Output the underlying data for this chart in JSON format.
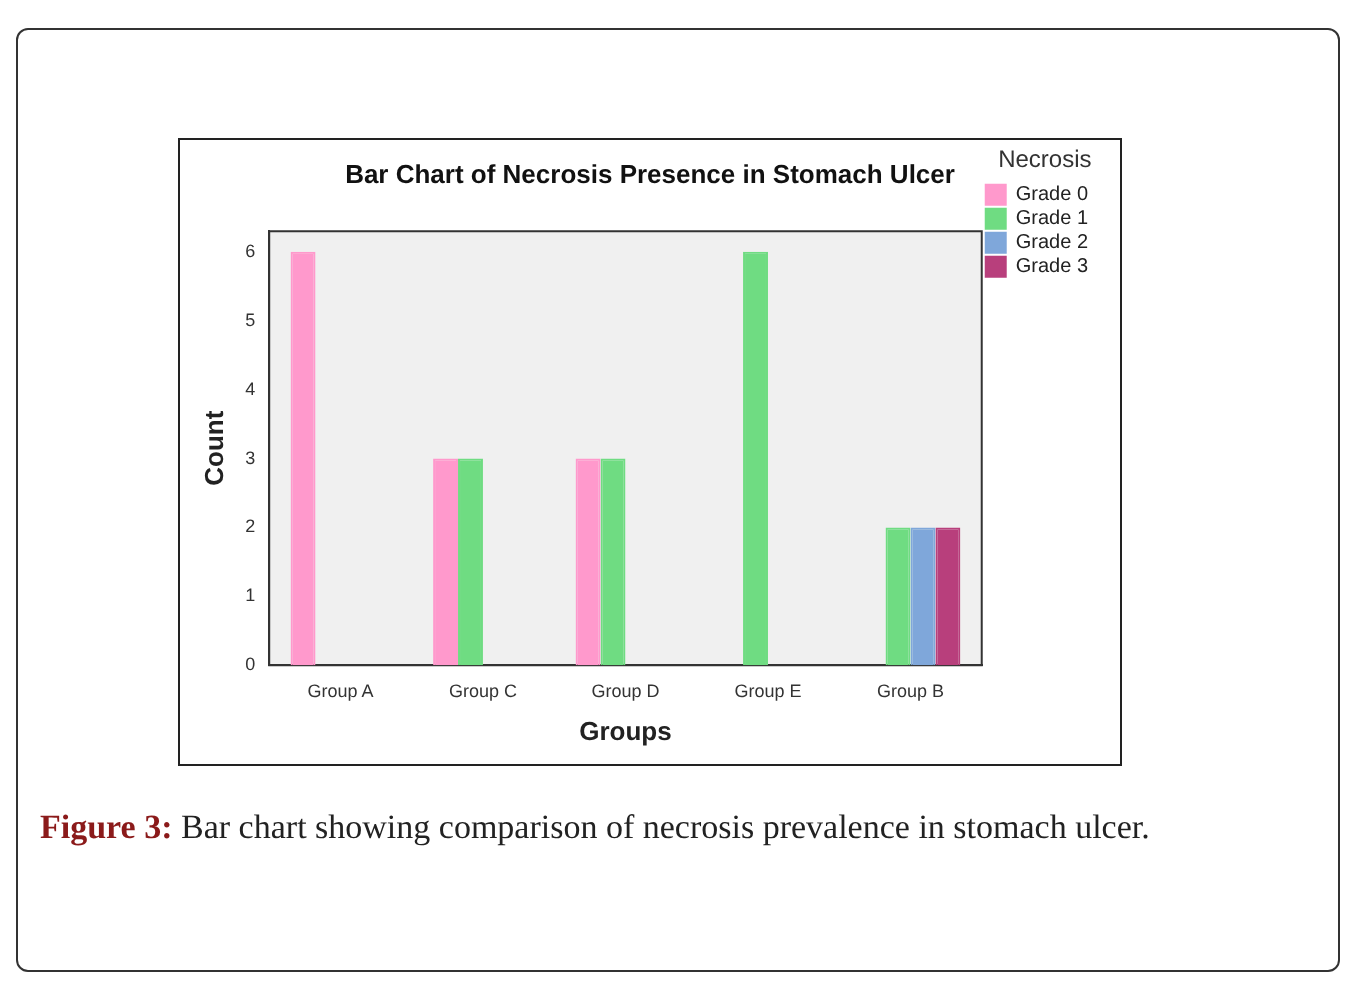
{
  "chart_data": {
    "type": "bar",
    "title": "Bar Chart of Necrosis Presence in Stomach Ulcer",
    "xlabel": "Groups",
    "ylabel": "Count",
    "legend_title": "Necrosis",
    "categories": [
      "Group A",
      "Group C",
      "Group D",
      "Group E",
      "Group B"
    ],
    "series": [
      {
        "name": "Grade 0",
        "color": "#ff99cc",
        "values": [
          6,
          3,
          3,
          null,
          null
        ]
      },
      {
        "name": "Grade 1",
        "color": "#6fdc82",
        "values": [
          null,
          3,
          3,
          6,
          2
        ]
      },
      {
        "name": "Grade 2",
        "color": "#7fa7da",
        "values": [
          null,
          null,
          null,
          null,
          2
        ]
      },
      {
        "name": "Grade 3",
        "color": "#b83f7c",
        "values": [
          null,
          null,
          null,
          null,
          2
        ]
      }
    ],
    "ylim": [
      0,
      6.3
    ],
    "yticks": [
      0,
      1,
      2,
      3,
      4,
      5,
      6
    ],
    "grid": false,
    "legend": "top right",
    "annotations": [
      "Figure 3:",
      "Bar chart showing comparison of necrosis prevalence in stomach ulcer."
    ]
  }
}
